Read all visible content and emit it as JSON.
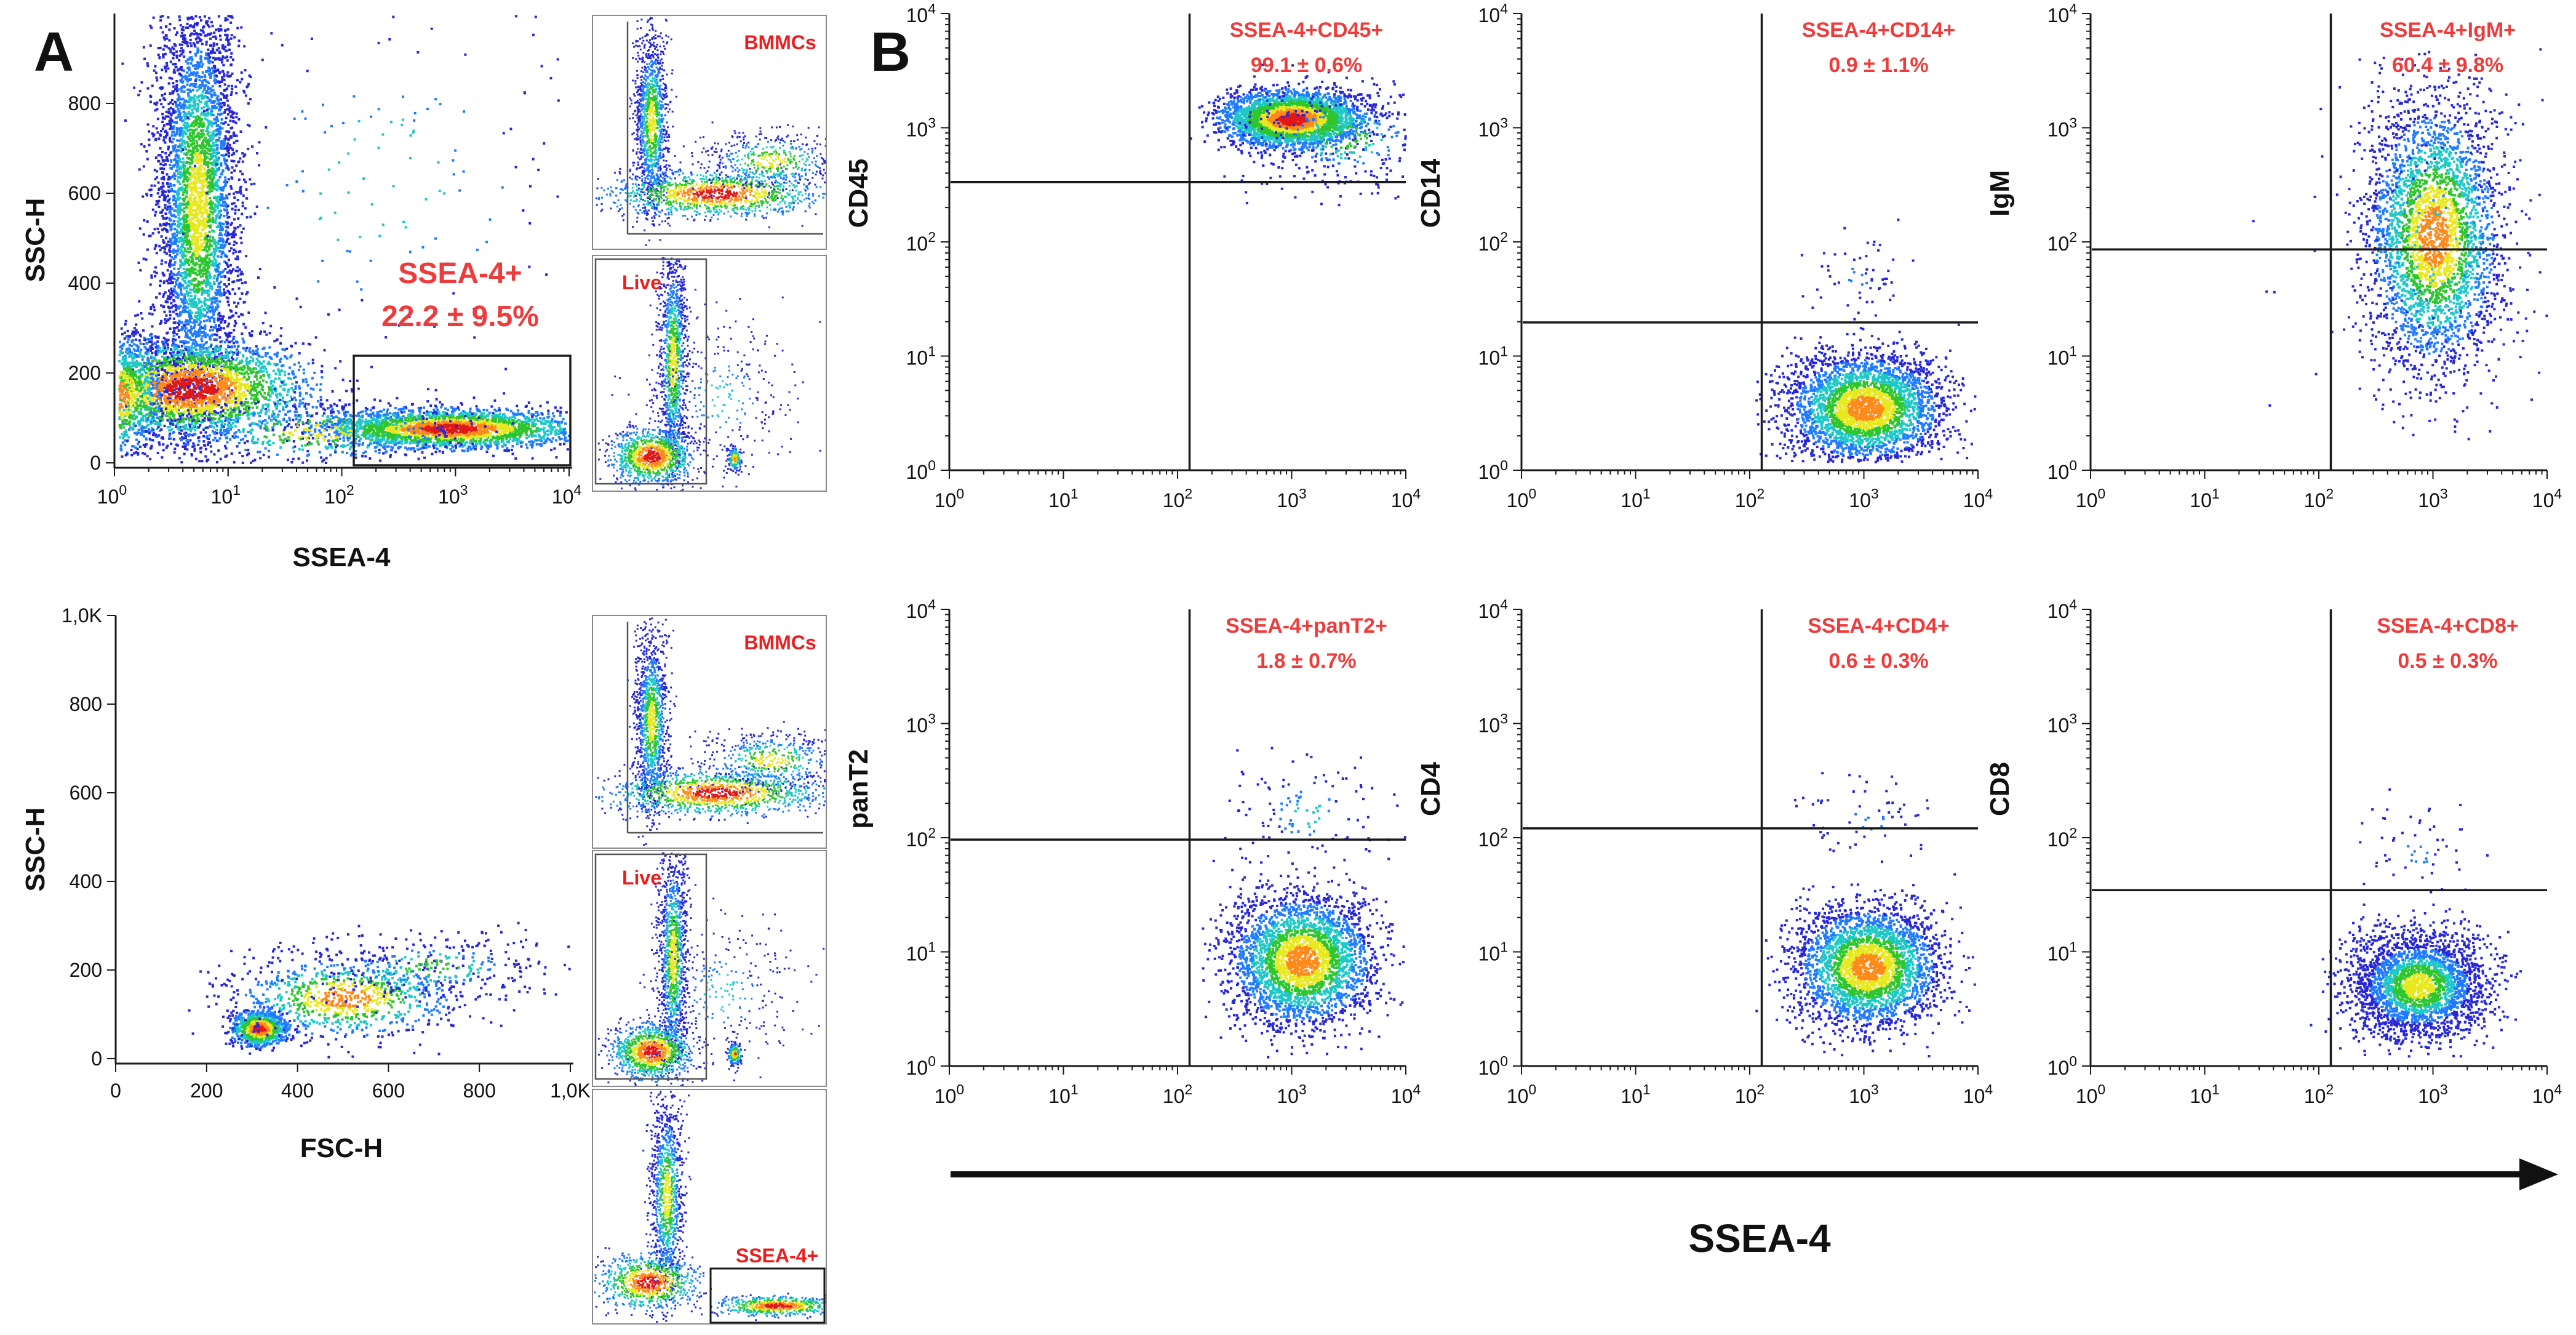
{
  "panel_labels": {
    "a": "A",
    "b": "B"
  },
  "colors": {
    "axis": "#111111",
    "annotation": "#ee3b3b",
    "density": [
      "#2727d6",
      "#1f7bff",
      "#1fc7c7",
      "#2ec52e",
      "#e8e820",
      "#ff8a1a",
      "#e01818"
    ]
  },
  "panel_a": {
    "top": {
      "xlabel": "SSEA-4",
      "ylabel": "SSC-H",
      "xticks": [
        "10^0",
        "10^1",
        "10^2",
        "10^3",
        "10^4"
      ],
      "yticks": [
        "0",
        "200",
        "400",
        "600",
        "800"
      ],
      "gate_label": "SSEA-4+",
      "gate_value": "22.2 ± 9.5%",
      "gate": {
        "x": [
          2.1,
          4.0
        ],
        "y": [
          0,
          250
        ]
      }
    },
    "bottom": {
      "xlabel": "FSC-H",
      "ylabel": "SSC-H",
      "xticks": [
        "0",
        "200",
        "400",
        "600",
        "800",
        "1,0K"
      ],
      "yticks": [
        "0",
        "200",
        "400",
        "600",
        "800",
        "1,0K"
      ]
    },
    "top_thumbnails": [
      "BMMCs",
      "Live"
    ],
    "bottom_thumbnails": [
      "BMMCs",
      "Live",
      "SSEA-4+"
    ]
  },
  "chart_data": [
    {
      "type": "scatter",
      "title": "",
      "xlabel": "SSEA-4",
      "ylabel": "SSC-H",
      "xscale": "log",
      "xlim": [
        1,
        10000
      ],
      "ylim": [
        0,
        1000
      ],
      "gate": {
        "label": "SSEA-4+",
        "value": "22.2 ± 9.5%",
        "x": [
          125,
          10000
        ],
        "y": [
          0,
          250
        ]
      }
    },
    {
      "type": "scatter",
      "title": "",
      "xlabel": "FSC-H",
      "ylabel": "SSC-H",
      "xlim": [
        0,
        1000
      ],
      "ylim": [
        0,
        1000
      ]
    },
    {
      "type": "scatter",
      "quadrant": "SSEA-4+CD45+",
      "value": "99.1 ± 0.6%",
      "xlabel": "SSEA-4",
      "ylabel": "CD45",
      "xscale": "log",
      "yscale": "log",
      "xlim": [
        1,
        10000
      ],
      "ylim": [
        1,
        10000
      ]
    },
    {
      "type": "scatter",
      "quadrant": "SSEA-4+CD14+",
      "value": "0.9 ± 1.1%",
      "xlabel": "SSEA-4",
      "ylabel": "CD14",
      "xscale": "log",
      "yscale": "log",
      "xlim": [
        1,
        10000
      ],
      "ylim": [
        1,
        10000
      ]
    },
    {
      "type": "scatter",
      "quadrant": "SSEA-4+IgM+",
      "value": "60.4 ± 9.8%",
      "xlabel": "SSEA-4",
      "ylabel": "IgM",
      "xscale": "log",
      "yscale": "log",
      "xlim": [
        1,
        10000
      ],
      "ylim": [
        1,
        10000
      ]
    },
    {
      "type": "scatter",
      "quadrant": "SSEA-4+panT2+",
      "value": "1.8 ± 0.7%",
      "xlabel": "SSEA-4",
      "ylabel": "panT2",
      "xscale": "log",
      "yscale": "log",
      "xlim": [
        1,
        10000
      ],
      "ylim": [
        1,
        10000
      ]
    },
    {
      "type": "scatter",
      "quadrant": "SSEA-4+CD4+",
      "value": "0.6 ± 0.3%",
      "xlabel": "SSEA-4",
      "ylabel": "CD4",
      "xscale": "log",
      "yscale": "log",
      "xlim": [
        1,
        10000
      ],
      "ylim": [
        1,
        10000
      ]
    },
    {
      "type": "scatter",
      "quadrant": "SSEA-4+CD8+",
      "value": "0.5 ± 0.3%",
      "xlabel": "SSEA-4",
      "ylabel": "CD8",
      "xscale": "log",
      "yscale": "log",
      "xlim": [
        1,
        10000
      ],
      "ylim": [
        1,
        10000
      ]
    }
  ],
  "panel_b": {
    "xlabel": "SSEA-4",
    "ytick_exponents": [
      "0",
      "1",
      "2",
      "3",
      "4"
    ],
    "xtick_exponents": [
      "0",
      "1",
      "2",
      "3",
      "4"
    ],
    "tick_base": "10",
    "plots": [
      {
        "ylabel": "CD45",
        "label": "SSEA-4+CD45+",
        "value": "99.1 ± 0.6%",
        "xgate": 2.1,
        "ygate": 2.5
      },
      {
        "ylabel": "CD14",
        "label": "SSEA-4+CD14+",
        "value": "0.9 ± 1.1%",
        "xgate": 2.1,
        "ygate": 1.25
      },
      {
        "ylabel": "IgM",
        "label": "SSEA-4+IgM+",
        "value": "60.4 ± 9.8%",
        "xgate": 2.1,
        "ygate": 1.9
      },
      {
        "ylabel": "panT2",
        "label": "SSEA-4+panT2+",
        "value": "1.8 ± 0.7%",
        "xgate": 2.1,
        "ygate": 1.95
      },
      {
        "ylabel": "CD4",
        "label": "SSEA-4+CD4+",
        "value": "0.6 ± 0.3%",
        "xgate": 2.1,
        "ygate": 2.05
      },
      {
        "ylabel": "CD8",
        "label": "SSEA-4+CD8+",
        "value": "0.5 ± 0.3%",
        "xgate": 2.1,
        "ygate": 1.5
      }
    ]
  }
}
